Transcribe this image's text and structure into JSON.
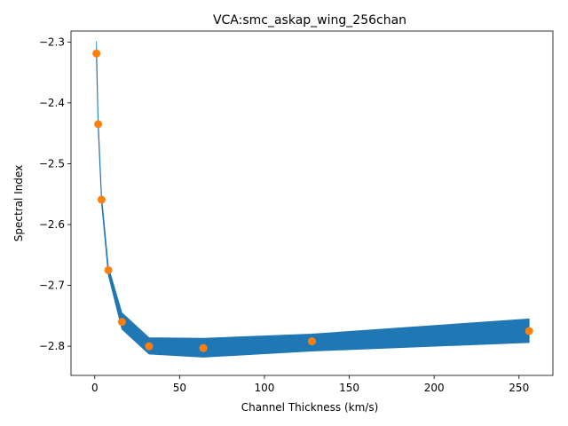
{
  "chart_data": {
    "type": "scatter",
    "title": "VCA:smc_askap_wing_256chan",
    "xlabel": "Channel Thickness (km/s)",
    "ylabel": "Spectral Index",
    "xlim": [
      -14,
      270
    ],
    "ylim": [
      -2.848,
      -2.282
    ],
    "x_ticks": [
      0,
      50,
      100,
      150,
      200,
      250
    ],
    "x_tick_labels": [
      "0",
      "50",
      "100",
      "150",
      "200",
      "250"
    ],
    "y_ticks": [
      -2.3,
      -2.4,
      -2.5,
      -2.6,
      -2.7,
      -2.8
    ],
    "y_tick_labels": [
      "−2.3",
      "−2.4",
      "−2.5",
      "−2.6",
      "−2.7",
      "−2.8"
    ],
    "grid": false,
    "series": [
      {
        "kind": "points",
        "color": "#ff7f0e",
        "x": [
          1,
          2,
          4,
          8,
          16,
          32,
          64,
          128,
          256
        ],
        "y": [
          -2.319,
          -2.435,
          -2.559,
          -2.675,
          -2.76,
          -2.8,
          -2.803,
          -2.792,
          -2.775
        ]
      },
      {
        "kind": "confidence-band",
        "color": "#1f77b4",
        "x": [
          1,
          2,
          4,
          8,
          16,
          32,
          64,
          128,
          256
        ],
        "upper": [
          -2.299,
          -2.426,
          -2.552,
          -2.669,
          -2.745,
          -2.786,
          -2.787,
          -2.78,
          -2.755
        ],
        "lower": [
          -2.329,
          -2.442,
          -2.565,
          -2.683,
          -2.772,
          -2.813,
          -2.818,
          -2.808,
          -2.794
        ]
      }
    ]
  }
}
